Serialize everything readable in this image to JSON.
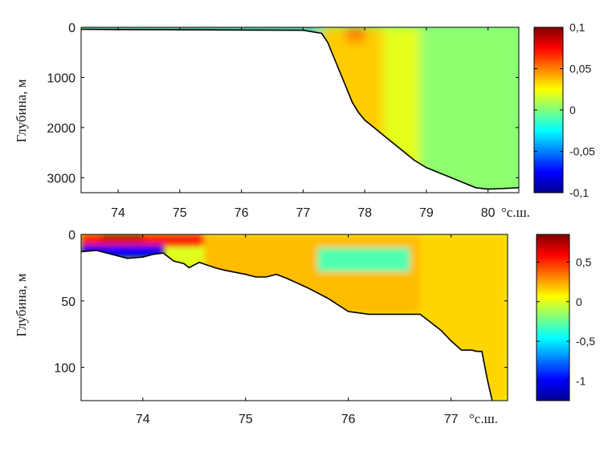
{
  "chart_data": [
    {
      "type": "heatmap",
      "ylabel": "Глубина, м",
      "xunit": "°с.ш.",
      "xlim": [
        73.4,
        80.5
      ],
      "ylim": [
        3300,
        0
      ],
      "xticks": [
        "74",
        "75",
        "76",
        "77",
        "78",
        "79",
        "80"
      ],
      "yticks": [
        "0",
        "1000",
        "2000",
        "3000"
      ],
      "colorbar": {
        "range": [
          -0.1,
          0.1
        ],
        "ticks": [
          "0,1",
          "0,05",
          "0",
          "-0,05",
          "-0,1"
        ]
      },
      "bottom": [
        [
          73.4,
          40
        ],
        [
          74,
          45
        ],
        [
          75,
          50
        ],
        [
          76,
          55
        ],
        [
          77,
          60
        ],
        [
          77.3,
          120
        ],
        [
          77.4,
          300
        ],
        [
          77.5,
          600
        ],
        [
          77.6,
          900
        ],
        [
          77.7,
          1200
        ],
        [
          77.8,
          1500
        ],
        [
          77.9,
          1700
        ],
        [
          78.0,
          1850
        ],
        [
          78.2,
          2050
        ],
        [
          78.4,
          2250
        ],
        [
          78.6,
          2450
        ],
        [
          78.8,
          2650
        ],
        [
          79.0,
          2800
        ],
        [
          79.2,
          2900
        ],
        [
          79.4,
          3000
        ],
        [
          79.6,
          3100
        ],
        [
          79.8,
          3200
        ],
        [
          80.0,
          3230
        ],
        [
          80.2,
          3220
        ],
        [
          80.5,
          3200
        ]
      ],
      "fields": [
        {
          "x": [
            77.3,
            78.3
          ],
          "y": [
            0,
            3300
          ],
          "value": 0.035
        },
        {
          "x": [
            77.7,
            78.0
          ],
          "y": [
            0,
            300
          ],
          "value": 0.05
        },
        {
          "x": [
            78.3,
            78.9
          ],
          "y": [
            0,
            3300
          ],
          "value": 0.02
        },
        {
          "x": [
            78.9,
            80.5
          ],
          "y": [
            0,
            3300
          ],
          "value": 0.003
        },
        {
          "x": [
            73.4,
            77.3
          ],
          "y": [
            0,
            60
          ],
          "value": -0.07
        }
      ]
    },
    {
      "type": "heatmap",
      "ylabel": "Глубина, м",
      "xunit": "°с.ш.",
      "xlim": [
        73.4,
        77.55
      ],
      "ylim": [
        125,
        0
      ],
      "xticks": [
        "74",
        "75",
        "76",
        "77"
      ],
      "yticks": [
        "0",
        "50",
        "100"
      ],
      "colorbar": {
        "range": [
          -1.25,
          0.85
        ],
        "ticks": [
          "0,5",
          "0",
          "-0,5",
          "-1"
        ]
      },
      "bottom": [
        [
          73.4,
          13
        ],
        [
          73.55,
          12
        ],
        [
          73.7,
          15
        ],
        [
          73.85,
          18
        ],
        [
          74.0,
          17
        ],
        [
          74.1,
          15
        ],
        [
          74.2,
          14
        ],
        [
          74.3,
          20
        ],
        [
          74.4,
          22
        ],
        [
          74.45,
          25
        ],
        [
          74.55,
          21
        ],
        [
          74.7,
          25
        ],
        [
          74.8,
          27
        ],
        [
          75.0,
          30
        ],
        [
          75.1,
          32
        ],
        [
          75.2,
          32
        ],
        [
          75.3,
          30
        ],
        [
          75.4,
          33
        ],
        [
          75.6,
          40
        ],
        [
          75.8,
          48
        ],
        [
          76.0,
          58
        ],
        [
          76.2,
          60
        ],
        [
          76.4,
          60
        ],
        [
          76.7,
          60
        ],
        [
          76.9,
          72
        ],
        [
          77.0,
          80
        ],
        [
          77.1,
          87
        ],
        [
          77.2,
          87
        ],
        [
          77.25,
          88
        ],
        [
          77.3,
          88
        ],
        [
          77.35,
          108
        ],
        [
          77.4,
          125
        ]
      ],
      "fields": [
        {
          "x": [
            73.4,
            74.6
          ],
          "y": [
            0,
            8
          ],
          "value": 0.55
        },
        {
          "x": [
            73.6,
            74.0
          ],
          "y": [
            0,
            4
          ],
          "value": 0.8
        },
        {
          "x": [
            74.6,
            76.7
          ],
          "y": [
            0,
            60
          ],
          "value": 0.2
        },
        {
          "x": [
            75.7,
            76.6
          ],
          "y": [
            10,
            28
          ],
          "value": -0.3
        },
        {
          "x": [
            76.7,
            77.55
          ],
          "y": [
            0,
            125
          ],
          "value": 0.15
        },
        {
          "x": [
            73.4,
            74.2
          ],
          "y": [
            8,
            18
          ],
          "value": -1.0
        }
      ]
    }
  ]
}
